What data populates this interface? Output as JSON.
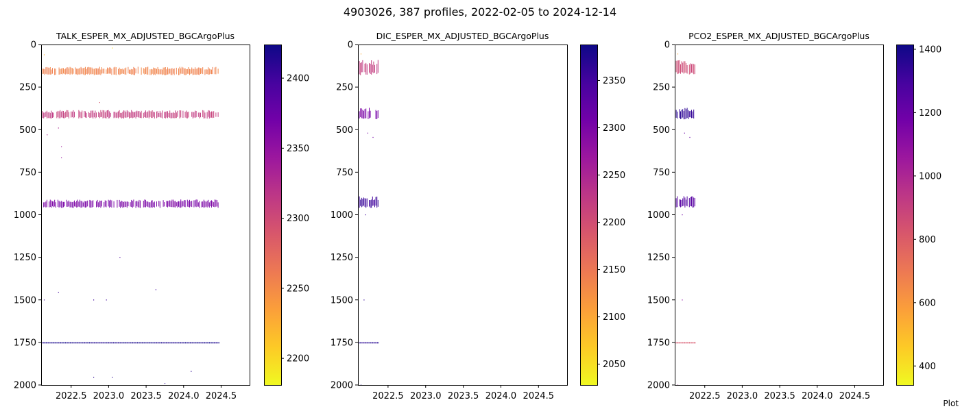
{
  "figure": {
    "suptitle": "4903026, 387 profiles, 2022-02-05 to 2024-12-14",
    "corner_text": "Plot"
  },
  "colormap": {
    "name": "plasma_r",
    "stops": [
      "#f0f921",
      "#fdca26",
      "#fb9f3a",
      "#ed7953",
      "#d8576b",
      "#bd3786",
      "#9c179e",
      "#7201a8",
      "#46039f",
      "#0d0887"
    ]
  },
  "chart_data": [
    {
      "type": "scatter",
      "title": "TALK_ESPER_MX_ADJUSTED_BGCArgoPlus",
      "xlabel": "",
      "ylabel": "",
      "xlim": [
        2022.1,
        2024.88
      ],
      "ylim": [
        2000,
        0
      ],
      "y_inverted": true,
      "xticks": [
        2022.5,
        2023.0,
        2023.5,
        2024.0,
        2024.5
      ],
      "xtick_labels": [
        "2022.5",
        "2023.0",
        "2023.5",
        "2024.0",
        "2024.5"
      ],
      "yticks": [
        0,
        250,
        500,
        750,
        1000,
        1250,
        1500,
        1750,
        2000
      ],
      "ytick_labels": [
        "0",
        "250",
        "500",
        "750",
        "1000",
        "1250",
        "1500",
        "1750",
        "2000"
      ],
      "colorbar": {
        "range": [
          2181,
          2424
        ],
        "ticks": [
          2200,
          2250,
          2300,
          2350,
          2400
        ],
        "tick_labels": [
          "2200",
          "2250",
          "2300",
          "2350",
          "2400"
        ]
      },
      "bands": [
        {
          "depth_min": 130,
          "depth_max": 180,
          "x_start": 2022.1,
          "x_end": 2024.47,
          "value": 2255
        },
        {
          "depth_min": 385,
          "depth_max": 435,
          "x_start": 2022.1,
          "x_end": 2024.47,
          "value": 2310
        },
        {
          "depth_min": 910,
          "depth_max": 960,
          "x_start": 2022.1,
          "x_end": 2024.47,
          "value": 2365
        },
        {
          "depth_min": 1749,
          "depth_max": 1752,
          "x_start": 2022.1,
          "x_end": 2024.47,
          "value": 2418
        }
      ],
      "scatter_points": [
        {
          "x": 2022.18,
          "y": 530,
          "value": 2330
        },
        {
          "x": 2022.33,
          "y": 490,
          "value": 2330
        },
        {
          "x": 2022.37,
          "y": 600,
          "value": 2340
        },
        {
          "x": 2022.37,
          "y": 665,
          "value": 2345
        },
        {
          "x": 2022.14,
          "y": 1500,
          "value": 2400
        },
        {
          "x": 2022.33,
          "y": 1455,
          "value": 2400
        },
        {
          "x": 2022.8,
          "y": 1500,
          "value": 2400
        },
        {
          "x": 2022.97,
          "y": 1500,
          "value": 2400
        },
        {
          "x": 2023.15,
          "y": 1250,
          "value": 2390
        },
        {
          "x": 2023.63,
          "y": 1440,
          "value": 2400
        },
        {
          "x": 2024.1,
          "y": 1920,
          "value": 2410
        },
        {
          "x": 2022.8,
          "y": 1955,
          "value": 2410
        },
        {
          "x": 2023.05,
          "y": 1955,
          "value": 2410
        },
        {
          "x": 2023.75,
          "y": 1990,
          "value": 2410
        },
        {
          "x": 2022.88,
          "y": 340,
          "value": 2290
        },
        {
          "x": 2023.05,
          "y": 20,
          "value": 2200
        },
        {
          "x": 2022.14,
          "y": 60,
          "value": 2220
        },
        {
          "x": 2023.8,
          "y": 0,
          "value": 2210
        }
      ]
    },
    {
      "type": "scatter",
      "title": "DIC_ESPER_MX_ADJUSTED_BGCArgoPlus",
      "xlabel": "",
      "ylabel": "",
      "xlim": [
        2022.1,
        2024.88
      ],
      "ylim": [
        2000,
        0
      ],
      "y_inverted": true,
      "xticks": [
        2022.5,
        2023.0,
        2023.5,
        2024.0,
        2024.5
      ],
      "xtick_labels": [
        "2022.5",
        "2023.0",
        "2023.5",
        "2024.0",
        "2024.5"
      ],
      "yticks": [
        0,
        250,
        500,
        750,
        1000,
        1250,
        1500,
        1750,
        2000
      ],
      "ytick_labels": [
        "0",
        "250",
        "500",
        "750",
        "1000",
        "1250",
        "1500",
        "1750",
        "2000"
      ],
      "colorbar": {
        "range": [
          2028,
          2388
        ],
        "ticks": [
          2050,
          2100,
          2150,
          2200,
          2250,
          2300,
          2350
        ],
        "tick_labels": [
          "2050",
          "2100",
          "2150",
          "2200",
          "2250",
          "2300",
          "2350"
        ]
      },
      "bands": [
        {
          "depth_min": 90,
          "depth_max": 180,
          "x_start": 2022.1,
          "x_end": 2022.37,
          "value": 2220
        },
        {
          "depth_min": 370,
          "depth_max": 440,
          "x_start": 2022.1,
          "x_end": 2022.37,
          "value": 2300
        },
        {
          "depth_min": 890,
          "depth_max": 960,
          "x_start": 2022.1,
          "x_end": 2022.37,
          "value": 2355
        },
        {
          "depth_min": 1749,
          "depth_max": 1752,
          "x_start": 2022.1,
          "x_end": 2022.37,
          "value": 2370
        }
      ],
      "scatter_points": [
        {
          "x": 2022.23,
          "y": 520,
          "value": 2300
        },
        {
          "x": 2022.3,
          "y": 545,
          "value": 2305
        },
        {
          "x": 2022.18,
          "y": 1500,
          "value": 2360
        },
        {
          "x": 2022.2,
          "y": 1000,
          "value": 2350
        },
        {
          "x": 2022.14,
          "y": 55,
          "value": 2100
        },
        {
          "x": 2022.14,
          "y": 2000,
          "value": 2380
        }
      ]
    },
    {
      "type": "scatter",
      "title": "PCO2_ESPER_MX_ADJUSTED_BGCArgoPlus",
      "xlabel": "",
      "ylabel": "",
      "xlim": [
        2022.1,
        2024.88
      ],
      "ylim": [
        2000,
        0
      ],
      "y_inverted": true,
      "xticks": [
        2022.5,
        2023.0,
        2023.5,
        2024.0,
        2024.5
      ],
      "xtick_labels": [
        "2022.5",
        "2023.0",
        "2023.5",
        "2024.0",
        "2024.5"
      ],
      "yticks": [
        0,
        250,
        500,
        750,
        1000,
        1250,
        1500,
        1750,
        2000
      ],
      "ytick_labels": [
        "0",
        "250",
        "500",
        "750",
        "1000",
        "1250",
        "1500",
        "1750",
        "2000"
      ],
      "colorbar": {
        "range": [
          340,
          1415
        ],
        "ticks": [
          400,
          600,
          800,
          1000,
          1200,
          1400
        ],
        "tick_labels": [
          "400",
          "600",
          "800",
          "1000",
          "1200",
          "1400"
        ]
      },
      "bands": [
        {
          "depth_min": 90,
          "depth_max": 180,
          "x_start": 2022.1,
          "x_end": 2022.37,
          "value": 860
        },
        {
          "depth_min": 370,
          "depth_max": 440,
          "x_start": 2022.1,
          "x_end": 2022.37,
          "value": 1340
        },
        {
          "depth_min": 890,
          "depth_max": 960,
          "x_start": 2022.1,
          "x_end": 2022.37,
          "value": 1250
        },
        {
          "depth_min": 1749,
          "depth_max": 1752,
          "x_start": 2022.1,
          "x_end": 2022.37,
          "value": 820
        }
      ],
      "scatter_points": [
        {
          "x": 2022.23,
          "y": 520,
          "value": 1200
        },
        {
          "x": 2022.3,
          "y": 545,
          "value": 1200
        },
        {
          "x": 2022.2,
          "y": 1500,
          "value": 1100
        },
        {
          "x": 2022.2,
          "y": 1000,
          "value": 1200
        },
        {
          "x": 2022.14,
          "y": 55,
          "value": 560
        },
        {
          "x": 2022.14,
          "y": 2000,
          "value": 1000
        }
      ]
    }
  ]
}
